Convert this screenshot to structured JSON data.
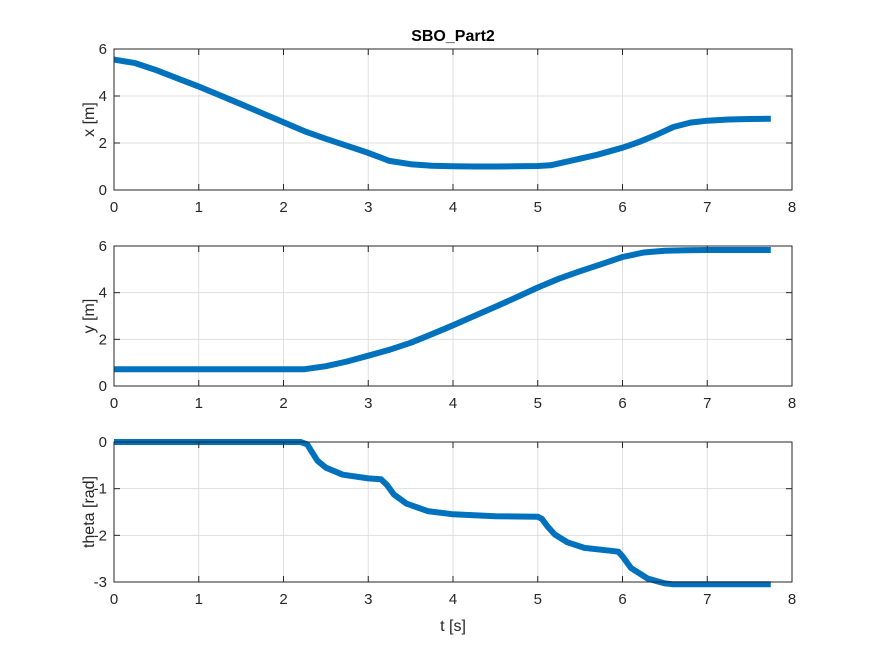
{
  "chart_data": [
    {
      "type": "line",
      "title": "SBO_Part2",
      "xlabel": "",
      "ylabel": "x [m]",
      "xlim": [
        0,
        8
      ],
      "ylim": [
        0,
        6
      ],
      "xticks": [
        "0",
        "1",
        "2",
        "3",
        "4",
        "5",
        "6",
        "7",
        "8"
      ],
      "yticks": [
        "0",
        "2",
        "4",
        "6"
      ],
      "grid": true,
      "x": [
        0,
        0.25,
        0.5,
        0.75,
        1,
        1.25,
        1.5,
        1.75,
        2,
        2.25,
        2.5,
        2.75,
        3,
        3.25,
        3.5,
        3.75,
        4,
        4.25,
        4.5,
        4.75,
        5,
        5.15,
        5.4,
        5.7,
        6,
        6.2,
        6.4,
        6.6,
        6.8,
        7,
        7.25,
        7.5,
        7.75
      ],
      "series": [
        {
          "values": [
            5.55,
            5.4,
            5.1,
            4.75,
            4.4,
            4.03,
            3.65,
            3.27,
            2.88,
            2.5,
            2.18,
            1.88,
            1.58,
            1.24,
            1.1,
            1.03,
            1.01,
            1.0,
            1.0,
            1.01,
            1.02,
            1.05,
            1.25,
            1.5,
            1.8,
            2.05,
            2.35,
            2.68,
            2.87,
            2.95,
            3.0,
            3.02,
            3.03
          ]
        }
      ],
      "color": "#0072bd"
    },
    {
      "type": "line",
      "title": "",
      "xlabel": "",
      "ylabel": "y [m]",
      "xlim": [
        0,
        8
      ],
      "ylim": [
        0,
        6
      ],
      "xticks": [
        "0",
        "1",
        "2",
        "3",
        "4",
        "5",
        "6",
        "7",
        "8"
      ],
      "yticks": [
        "0",
        "2",
        "4",
        "6"
      ],
      "grid": true,
      "x": [
        0,
        0.5,
        1,
        1.5,
        2,
        2.25,
        2.5,
        2.75,
        3,
        3.25,
        3.5,
        3.75,
        4,
        4.25,
        4.5,
        4.75,
        5,
        5.25,
        5.5,
        5.75,
        6,
        6.25,
        6.5,
        6.75,
        7,
        7.25,
        7.5,
        7.75
      ],
      "series": [
        {
          "values": [
            0.72,
            0.72,
            0.72,
            0.72,
            0.72,
            0.72,
            0.85,
            1.05,
            1.3,
            1.55,
            1.85,
            2.22,
            2.6,
            3.0,
            3.4,
            3.8,
            4.22,
            4.6,
            4.92,
            5.22,
            5.53,
            5.72,
            5.8,
            5.82,
            5.83,
            5.83,
            5.83,
            5.83
          ]
        }
      ],
      "color": "#0072bd"
    },
    {
      "type": "line",
      "title": "",
      "xlabel": "t [s]",
      "ylabel": "theta [rad]",
      "xlim": [
        0,
        8
      ],
      "ylim": [
        -3,
        0
      ],
      "xticks": [
        "0",
        "1",
        "2",
        "3",
        "4",
        "5",
        "6",
        "7",
        "8"
      ],
      "yticks": [
        "0",
        "-1",
        "-2",
        "-3"
      ],
      "grid": true,
      "x": [
        0,
        0.5,
        1,
        1.5,
        2,
        2.2,
        2.28,
        2.33,
        2.4,
        2.5,
        2.7,
        3.0,
        3.15,
        3.22,
        3.3,
        3.45,
        3.7,
        4.0,
        4.5,
        5.0,
        5.05,
        5.12,
        5.2,
        5.35,
        5.55,
        5.85,
        5.95,
        6.0,
        6.1,
        6.3,
        6.5,
        6.6,
        7.0,
        7.5,
        7.75
      ],
      "series": [
        {
          "values": [
            0,
            0,
            0,
            0,
            0,
            0,
            -0.05,
            -0.2,
            -0.4,
            -0.55,
            -0.7,
            -0.78,
            -0.8,
            -0.92,
            -1.12,
            -1.32,
            -1.48,
            -1.55,
            -1.59,
            -1.6,
            -1.65,
            -1.82,
            -1.98,
            -2.15,
            -2.27,
            -2.33,
            -2.35,
            -2.45,
            -2.7,
            -2.93,
            -3.03,
            -3.05,
            -3.05,
            -3.05,
            -3.05
          ]
        }
      ],
      "color": "#0072bd"
    }
  ]
}
